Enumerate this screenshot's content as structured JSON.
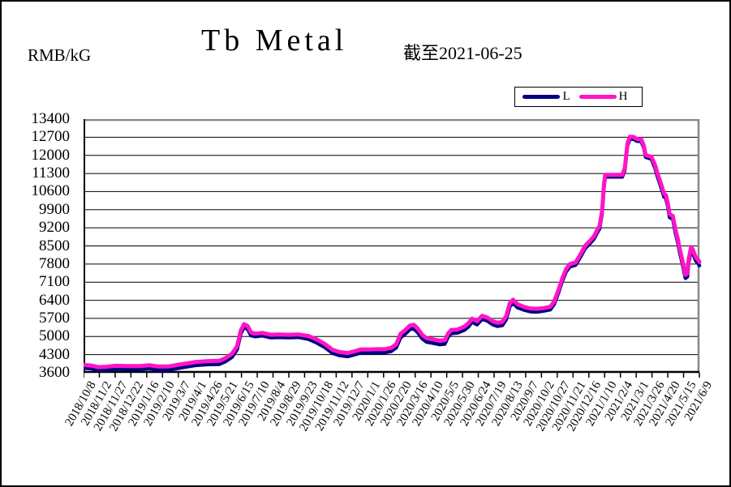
{
  "header": {
    "unit_label": "RMB/kG",
    "title": "Tb Metal",
    "as_of_label": "截至2021-06-25"
  },
  "legend": {
    "items": [
      {
        "label": "L",
        "color": "#000080"
      },
      {
        "label": "H",
        "color": "#ff14c8"
      }
    ]
  },
  "chart_data": {
    "type": "line",
    "title": "Tb Metal",
    "as_of": "2021-06-25",
    "ylabel": "RMB/kG",
    "ylim": [
      3600,
      13400
    ],
    "ytick_step": 700,
    "yticks": [
      3600,
      4300,
      5000,
      5700,
      6400,
      7100,
      7800,
      8500,
      9200,
      9900,
      10600,
      11300,
      12000,
      12700,
      13400
    ],
    "grid": "horizontal",
    "legend_position": "top-right",
    "x_tick_interval_days": 25,
    "x_tick_labels": [
      "2018/10/8",
      "2018/11/2",
      "2018/11/27",
      "2018/12/22",
      "2019/1/16",
      "2019/2/10",
      "2019/3/7",
      "2019/4/1",
      "2019/4/26",
      "2019/5/21",
      "2019/6/15",
      "2019/7/10",
      "2019/8/4",
      "2019/8/29",
      "2019/9/23",
      "2019/10/18",
      "2019/11/12",
      "2019/12/7",
      "2020/1/1",
      "2020/1/26",
      "2020/2/20",
      "2020/3/16",
      "2020/4/10",
      "2020/5/5",
      "2020/5/30",
      "2020/6/24",
      "2020/7/19",
      "2020/8/13",
      "2020/9/7",
      "2020/10/2",
      "2020/10/27",
      "2020/11/21",
      "2020/12/16",
      "2021/1/10",
      "2021/2/4",
      "2021/3/1",
      "2021/3/26",
      "2021/4/20",
      "2021/5/15",
      "2021/6/9"
    ],
    "t_max": 975,
    "series": [
      {
        "name": "L",
        "color": "#000080",
        "width": 4.5
      },
      {
        "name": "H",
        "color": "#ff14c8",
        "width": 5
      }
    ],
    "point_format": [
      "date",
      "day_offset",
      "L",
      "H"
    ],
    "points": [
      [
        "2018/10/8",
        0,
        3780,
        3900
      ],
      [
        "2018/10/20",
        12,
        3760,
        3880
      ],
      [
        "2018/10/31",
        23,
        3700,
        3820
      ],
      [
        "2018/11/12",
        35,
        3710,
        3830
      ],
      [
        "2018/11/27",
        50,
        3740,
        3870
      ],
      [
        "2018/12/16",
        69,
        3730,
        3860
      ],
      [
        "2019/1/5",
        89,
        3730,
        3860
      ],
      [
        "2019/1/20",
        104,
        3760,
        3890
      ],
      [
        "2019/2/3",
        118,
        3710,
        3840
      ],
      [
        "2019/2/19",
        134,
        3710,
        3840
      ],
      [
        "2019/3/5",
        148,
        3770,
        3900
      ],
      [
        "2019/3/20",
        163,
        3830,
        3960
      ],
      [
        "2019/4/5",
        179,
        3890,
        4020
      ],
      [
        "2019/4/23",
        197,
        3920,
        4050
      ],
      [
        "2019/5/11",
        215,
        3930,
        4060
      ],
      [
        "2019/5/21",
        225,
        4040,
        4170
      ],
      [
        "2019/5/31",
        235,
        4200,
        4330
      ],
      [
        "2019/6/8",
        243,
        4500,
        4620
      ],
      [
        "2019/6/14",
        249,
        5110,
        5230
      ],
      [
        "2019/6/19",
        254,
        5360,
        5480
      ],
      [
        "2019/6/25",
        260,
        5280,
        5400
      ],
      [
        "2019/6/30",
        265,
        5040,
        5160
      ],
      [
        "2019/7/7",
        272,
        5000,
        5110
      ],
      [
        "2019/7/18",
        283,
        5030,
        5140
      ],
      [
        "2019/7/31",
        296,
        4960,
        5070
      ],
      [
        "2019/8/14",
        310,
        4970,
        5080
      ],
      [
        "2019/8/29",
        325,
        4960,
        5070
      ],
      [
        "2019/9/13",
        340,
        4970,
        5080
      ],
      [
        "2019/9/29",
        356,
        4900,
        5020
      ],
      [
        "2019/10/12",
        369,
        4760,
        4890
      ],
      [
        "2019/10/25",
        382,
        4580,
        4710
      ],
      [
        "2019/11/6",
        394,
        4360,
        4490
      ],
      [
        "2019/11/17",
        405,
        4270,
        4400
      ],
      [
        "2019/11/30",
        418,
        4230,
        4360
      ],
      [
        "2019/12/10",
        428,
        4290,
        4420
      ],
      [
        "2019/12/21",
        439,
        4370,
        4500
      ],
      [
        "2020/1/3",
        452,
        4370,
        4500
      ],
      [
        "2020/1/16",
        465,
        4380,
        4510
      ],
      [
        "2020/1/28",
        477,
        4380,
        4510
      ],
      [
        "2020/2/7",
        487,
        4430,
        4560
      ],
      [
        "2020/2/15",
        495,
        4570,
        4700
      ],
      [
        "2020/2/22",
        502,
        4960,
        5110
      ],
      [
        "2020/2/29",
        509,
        5090,
        5240
      ],
      [
        "2020/3/8",
        517,
        5280,
        5430
      ],
      [
        "2020/3/14",
        523,
        5300,
        5450
      ],
      [
        "2020/3/20",
        529,
        5160,
        5310
      ],
      [
        "2020/3/27",
        536,
        4920,
        5070
      ],
      [
        "2020/4/3",
        543,
        4790,
        4940
      ],
      [
        "2020/4/14",
        554,
        4740,
        4890
      ],
      [
        "2020/4/24",
        564,
        4690,
        4840
      ],
      [
        "2020/5/2",
        572,
        4710,
        4860
      ],
      [
        "2020/5/7",
        577,
        4980,
        5110
      ],
      [
        "2020/5/12",
        582,
        5120,
        5250
      ],
      [
        "2020/5/22",
        592,
        5140,
        5270
      ],
      [
        "2020/6/2",
        603,
        5250,
        5380
      ],
      [
        "2020/6/8",
        609,
        5370,
        5500
      ],
      [
        "2020/6/14",
        615,
        5560,
        5690
      ],
      [
        "2020/6/22",
        623,
        5460,
        5590
      ],
      [
        "2020/6/30",
        631,
        5670,
        5800
      ],
      [
        "2020/7/8",
        639,
        5610,
        5740
      ],
      [
        "2020/7/17",
        648,
        5460,
        5590
      ],
      [
        "2020/7/24",
        655,
        5400,
        5530
      ],
      [
        "2020/8/1",
        663,
        5430,
        5560
      ],
      [
        "2020/8/7",
        669,
        5650,
        5780
      ],
      [
        "2020/8/13",
        675,
        6170,
        6300
      ],
      [
        "2020/8/18",
        680,
        6290,
        6420
      ],
      [
        "2020/8/25",
        687,
        6120,
        6250
      ],
      [
        "2020/9/5",
        698,
        6020,
        6140
      ],
      [
        "2020/9/15",
        708,
        5960,
        6080
      ],
      [
        "2020/9/25",
        718,
        5950,
        6070
      ],
      [
        "2020/10/6",
        729,
        5990,
        6100
      ],
      [
        "2020/10/16",
        739,
        6040,
        6150
      ],
      [
        "2020/10/22",
        745,
        6250,
        6350
      ],
      [
        "2020/10/29",
        752,
        6700,
        6800
      ],
      [
        "2020/11/4",
        758,
        7150,
        7250
      ],
      [
        "2020/11/10",
        764,
        7500,
        7600
      ],
      [
        "2020/11/16",
        770,
        7700,
        7800
      ],
      [
        "2020/11/25",
        779,
        7760,
        7860
      ],
      [
        "2020/11/30",
        784,
        7960,
        8060
      ],
      [
        "2020/12/5",
        789,
        8170,
        8270
      ],
      [
        "2020/12/10",
        794,
        8400,
        8500
      ],
      [
        "2020/12/18",
        802,
        8600,
        8700
      ],
      [
        "2020/12/24",
        808,
        8770,
        8870
      ],
      [
        "2020/12/29",
        813,
        9000,
        9100
      ],
      [
        "2021/1/2",
        817,
        9170,
        9270
      ],
      [
        "2021/1/6",
        821,
        9750,
        9850
      ],
      [
        "2021/1/9",
        824,
        10800,
        10900
      ],
      [
        "2021/1/11",
        826,
        11170,
        11250
      ],
      [
        "2021/1/25",
        840,
        11170,
        11250
      ],
      [
        "2021/2/7",
        853,
        11170,
        11250
      ],
      [
        "2021/2/11",
        857,
        11420,
        11500
      ],
      [
        "2021/2/15",
        861,
        12370,
        12450
      ],
      [
        "2021/2/19",
        865,
        12640,
        12720
      ],
      [
        "2021/2/25",
        871,
        12630,
        12710
      ],
      [
        "2021/3/2",
        876,
        12550,
        12630
      ],
      [
        "2021/3/9",
        883,
        12540,
        12620
      ],
      [
        "2021/3/13",
        887,
        12300,
        12380
      ],
      [
        "2021/3/16",
        890,
        11930,
        12010
      ],
      [
        "2021/3/22",
        896,
        11880,
        11960
      ],
      [
        "2021/3/25",
        899,
        11870,
        11950
      ],
      [
        "2021/3/31",
        905,
        11500,
        11620
      ],
      [
        "2021/4/3",
        908,
        11240,
        11360
      ],
      [
        "2021/4/7",
        912,
        10940,
        11060
      ],
      [
        "2021/4/11",
        916,
        10640,
        10760
      ],
      [
        "2021/4/14",
        919,
        10400,
        10520
      ],
      [
        "2021/4/17",
        922,
        10340,
        10460
      ],
      [
        "2021/4/20",
        925,
        10030,
        10150
      ],
      [
        "2021/4/23",
        928,
        9600,
        9720
      ],
      [
        "2021/4/28",
        933,
        9540,
        9660
      ],
      [
        "2021/5/2",
        937,
        9020,
        9150
      ],
      [
        "2021/5/6",
        941,
        8630,
        8760
      ],
      [
        "2021/5/9",
        944,
        8230,
        8360
      ],
      [
        "2021/5/13",
        948,
        7830,
        7960
      ],
      [
        "2021/5/16",
        951,
        7490,
        7620
      ],
      [
        "2021/5/18",
        953,
        7250,
        7380
      ],
      [
        "2021/5/21",
        956,
        7310,
        7440
      ],
      [
        "2021/5/23",
        958,
        7850,
        7980
      ],
      [
        "2021/5/27",
        962,
        8330,
        8460
      ],
      [
        "2021/5/30",
        965,
        8210,
        8340
      ],
      [
        "2021/6/2",
        968,
        8000,
        8130
      ],
      [
        "2021/6/4",
        970,
        7900,
        8030
      ],
      [
        "2021/6/7",
        973,
        7840,
        7970
      ],
      [
        "2021/6/9",
        975,
        7740,
        7880
      ]
    ]
  }
}
